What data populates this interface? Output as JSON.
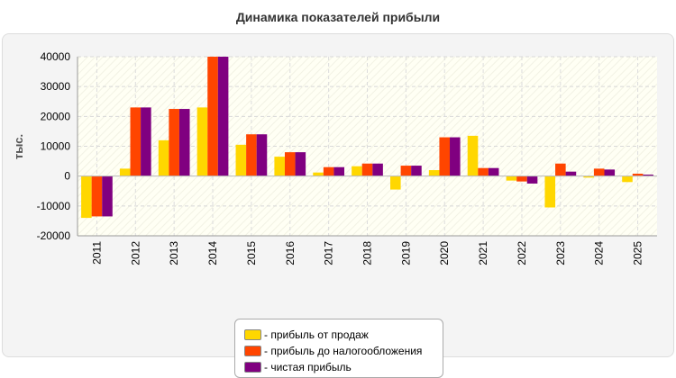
{
  "chart_data": {
    "type": "bar",
    "title": "Динамика показателей прибыли",
    "ylabel": "тыс.",
    "xlabel": "",
    "ylim": [
      -20000,
      40000
    ],
    "yticks": [
      -20000,
      -10000,
      0,
      10000,
      20000,
      30000,
      40000
    ],
    "categories": [
      "2011",
      "2012",
      "2013",
      "2014",
      "2015",
      "2016",
      "2017",
      "2018",
      "2019",
      "2020",
      "2021",
      "2022",
      "2023",
      "2024",
      "2025"
    ],
    "series": [
      {
        "name": "- прибыль от продаж",
        "color": "#ffd700",
        "values": [
          -14000,
          2500,
          12000,
          23000,
          10500,
          6500,
          1200,
          3300,
          -4500,
          2000,
          13500,
          -1500,
          -10500,
          -500,
          -2000
        ]
      },
      {
        "name": "- прибыль до налогообложения",
        "color": "#ff4500",
        "values": [
          -13500,
          23000,
          22500,
          40000,
          14000,
          8000,
          3000,
          4200,
          3500,
          13000,
          2700,
          -1800,
          4200,
          2500,
          800
        ]
      },
      {
        "name": "- чистая прибыль",
        "color": "#800080",
        "values": [
          -13500,
          23000,
          22500,
          40000,
          14000,
          8000,
          3000,
          4200,
          3500,
          13000,
          2700,
          -2500,
          1500,
          2200,
          500
        ]
      }
    ],
    "grid": true,
    "legend_position": "bottom-center"
  }
}
